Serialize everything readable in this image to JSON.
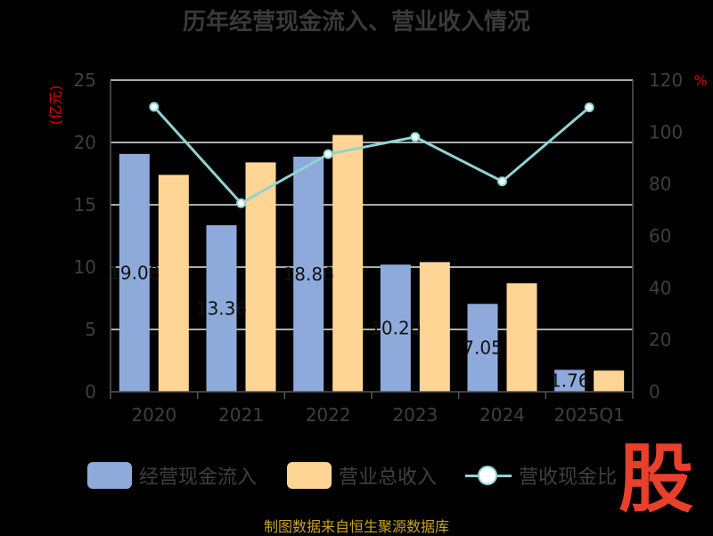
{
  "chart_data": {
    "type": "bar",
    "title": "历年经营现金流入、营业收入情况",
    "y_unit_left": "(亿元)",
    "y_unit_right": "%",
    "categories": [
      "2020",
      "2021",
      "2022",
      "2023",
      "2024",
      "2025Q1"
    ],
    "series": [
      {
        "name": "经营现金流入",
        "type": "bar",
        "color": "#8eaadb",
        "values": [
          19.08,
          13.36,
          18.86,
          10.2,
          7.05,
          1.76
        ],
        "labels": [
          "19.08",
          "13.36",
          "18.86",
          "10.20",
          "7.05",
          "1.76"
        ]
      },
      {
        "name": "营业总收入",
        "type": "bar",
        "color": "#ffd595",
        "values": [
          17.4,
          18.4,
          20.6,
          10.4,
          8.7,
          1.7
        ]
      },
      {
        "name": "营收现金比",
        "type": "line",
        "axis": "right",
        "color": "#8fd3d6",
        "values": [
          109.7,
          72.6,
          91.5,
          98.1,
          81.0,
          109.5
        ]
      }
    ],
    "y_left": {
      "min": 0,
      "max": 25,
      "ticks": [
        0,
        5,
        10,
        15,
        20,
        25
      ]
    },
    "y_right": {
      "min": 0,
      "max": 120,
      "ticks": [
        0,
        20,
        40,
        60,
        80,
        100,
        120
      ]
    },
    "grid": true,
    "legend_position": "bottom"
  },
  "footer": "制图数据来自恒生聚源数据库",
  "watermark": "股"
}
